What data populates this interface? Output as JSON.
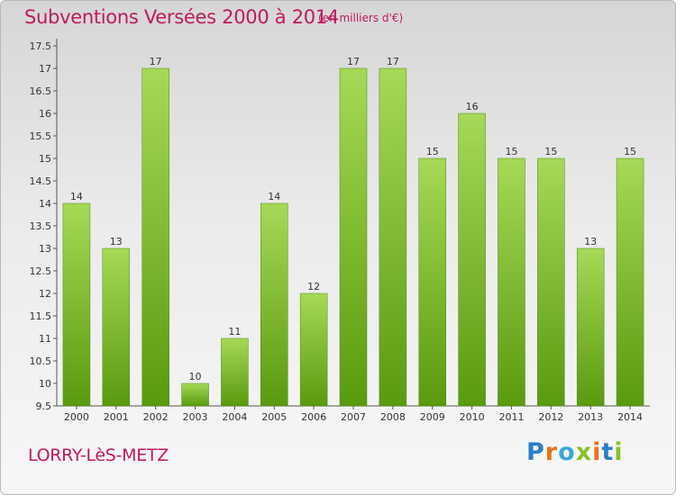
{
  "header": {
    "title": "Subventions Versées 2000 à 2014",
    "unit": "(en milliers d'€)"
  },
  "footer": {
    "commune": "LORRY-LèS-METZ",
    "logo": {
      "text": "Proxiti",
      "letter_colors": [
        "#2a7fc9",
        "#e8731c",
        "#3aa7d8",
        "#8bbf2a",
        "#e8731c",
        "#2a7fc9",
        "#8bbf2a"
      ]
    }
  },
  "colors": {
    "accent": "#c0195e",
    "bar_light": "#a6d957",
    "bar_dark": "#5a9a0e",
    "text": "#333333"
  },
  "chart_data": {
    "type": "bar",
    "title": "Subventions Versées 2000 à 2014",
    "categories": [
      "2000",
      "2001",
      "2002",
      "2003",
      "2004",
      "2005",
      "2006",
      "2007",
      "2008",
      "2009",
      "2010",
      "2011",
      "2012",
      "2013",
      "2014"
    ],
    "values": [
      14,
      13,
      17,
      10,
      11,
      14,
      12,
      17,
      17,
      15,
      16,
      15,
      15,
      13,
      15
    ],
    "value_labels": [
      "14",
      "13",
      "17",
      "10",
      "11",
      "14",
      "12",
      "17",
      "17",
      "15",
      "16",
      "15",
      "15",
      "13",
      "15"
    ],
    "yticks": [
      9.5,
      10,
      10.5,
      11,
      11.5,
      12,
      12.5,
      13,
      13.5,
      14,
      14.5,
      15,
      15.5,
      16,
      16.5,
      17,
      17.5
    ],
    "ytick_labels": [
      "9.5",
      "10",
      "10.5",
      "11",
      "11.5",
      "12",
      "12.5",
      "13",
      "13.5",
      "14",
      "14.5",
      "15",
      "15.5",
      "16",
      "16.5",
      "17",
      "17.5"
    ],
    "ylim": [
      9.5,
      17.5
    ],
    "xlabel": "",
    "ylabel": "",
    "grid": false,
    "legend": "none"
  }
}
